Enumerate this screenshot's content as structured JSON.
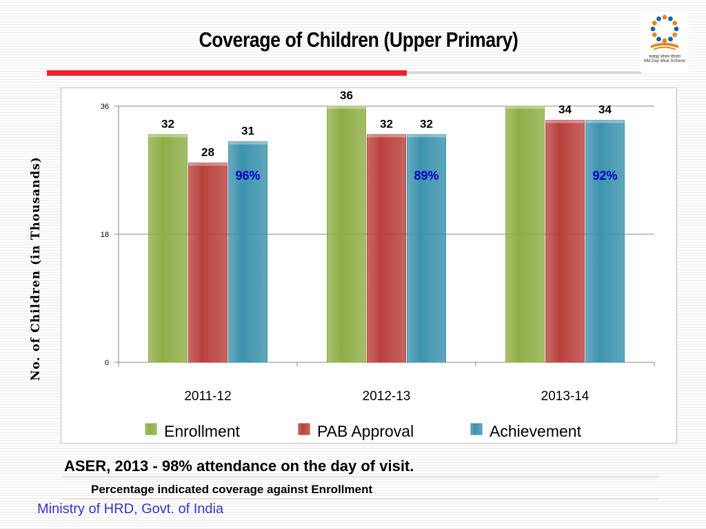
{
  "slide": {
    "title": "Coverage of Children  (Upper Primary)",
    "logo_text_hindi": "मध्याह्न भोजन योजना",
    "logo_text": "Mid Day Meal Scheme",
    "footer_note": "ASER, 2013 -  98% attendance on the day of visit.",
    "footer_subnote": "Percentage indicated coverage against  Enrollment",
    "footer_source": "Ministry of HRD, Govt. of India"
  },
  "chart_data": {
    "type": "bar",
    "title": "",
    "xlabel": "",
    "ylabel": "No. of Children (in Thousands)",
    "categories": [
      "2011-12",
      "2012-13",
      "2013-14"
    ],
    "ylim": [
      0,
      36
    ],
    "yticks": [
      "0",
      "18",
      "36"
    ],
    "grid": true,
    "legend_position": "bottom",
    "series": [
      {
        "name": "Enrollment",
        "values": [
          32,
          36,
          36
        ],
        "labels": [
          "32",
          "36",
          ""
        ],
        "color": "#8fae47"
      },
      {
        "name": "PAB Approval",
        "values": [
          28,
          32,
          34
        ],
        "labels": [
          "28",
          "32",
          "34"
        ],
        "color": "#b9413d"
      },
      {
        "name": "Achievement",
        "values": [
          31,
          32,
          34
        ],
        "labels": [
          "31",
          "32",
          "34"
        ],
        "color": "#3d93ad"
      }
    ],
    "percent_labels": [
      "96%",
      "89%",
      "92%"
    ],
    "percent_color": "#0000cc"
  }
}
